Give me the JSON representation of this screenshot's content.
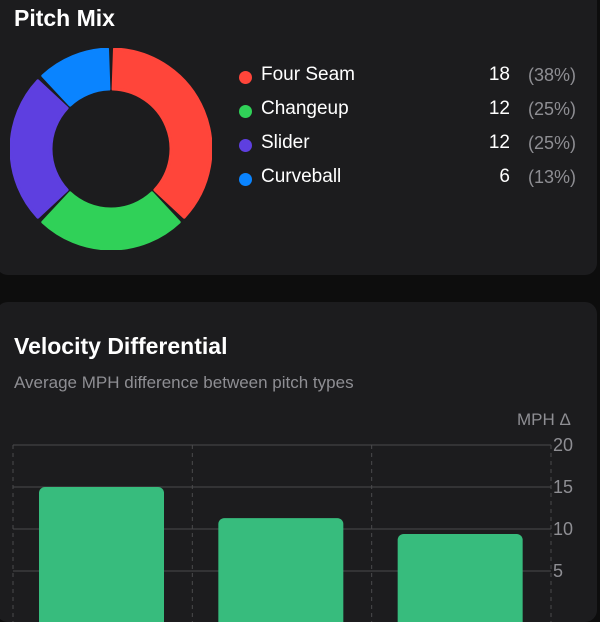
{
  "pitch_mix": {
    "title": "Pitch Mix",
    "items": [
      {
        "name": "Four Seam",
        "count": "18",
        "pct": "(38%)",
        "color": "#ff453a"
      },
      {
        "name": "Changeup",
        "count": "12",
        "pct": "(25%)",
        "color": "#30d158"
      },
      {
        "name": "Slider",
        "count": "12",
        "pct": "(25%)",
        "color": "#5e3fe0"
      },
      {
        "name": "Curveball",
        "count": "6",
        "pct": "(13%)",
        "color": "#0a84ff"
      }
    ]
  },
  "velocity": {
    "title": "Velocity Differential",
    "subtitle": "Average MPH difference between pitch types",
    "y_unit": "MPH Δ",
    "y_ticks": [
      "20",
      "15",
      "10",
      "5"
    ],
    "bar_color": "#37bc7d"
  },
  "chart_data": [
    {
      "type": "pie",
      "title": "Pitch Mix",
      "categories": [
        "Four Seam",
        "Changeup",
        "Slider",
        "Curveball"
      ],
      "values": [
        18,
        12,
        12,
        6
      ],
      "percentages": [
        38,
        25,
        25,
        13
      ],
      "colors": [
        "#ff453a",
        "#30d158",
        "#5e3fe0",
        "#0a84ff"
      ],
      "legend_position": "right"
    },
    {
      "type": "bar",
      "title": "Velocity Differential",
      "subtitle": "Average MPH difference between pitch types",
      "ylabel": "MPH Δ",
      "categories": [
        "",
        "",
        ""
      ],
      "values": [
        15.0,
        11.3,
        9.4
      ],
      "yticks": [
        5,
        10,
        15,
        20
      ],
      "ylim": [
        0,
        20
      ],
      "grid": true,
      "y_axis_position": "right"
    }
  ]
}
